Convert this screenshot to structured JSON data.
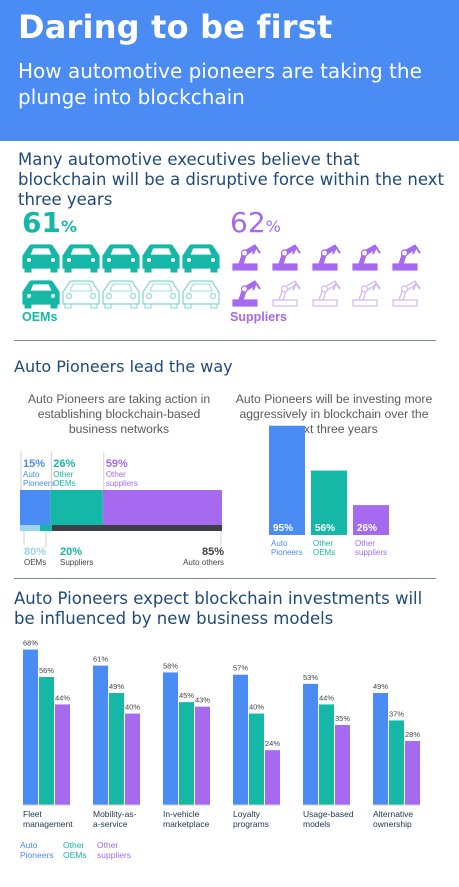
{
  "header": {
    "title": "Daring to be first",
    "subtitle": "How automotive pioneers are taking the plunge into blockchain"
  },
  "section1": {
    "heading": "Many automotive executives believe that blockchain will be a disruptive force within the next three years",
    "oems": {
      "value": "61",
      "unit": "%",
      "label": "OEMs",
      "icon": "car-icon",
      "filled": 6,
      "total": 10,
      "color": "#15b8a6"
    },
    "suppliers": {
      "value": "62",
      "unit": "%",
      "label": "Suppliers",
      "icon": "robot-arm-icon",
      "filled": 6,
      "total": 10,
      "color": "#a56af0"
    }
  },
  "section2": {
    "heading": "Auto Pioneers lead the way",
    "left_heading": "Auto Pioneers are taking action in establishing blockchain-based business networks",
    "right_heading": "Auto Pioneers will be investing more aggressively in blockchain over the next three years"
  },
  "section3": {
    "heading": "Auto Pioneers expect blockchain investments will be influenced by new business models"
  },
  "legend": {
    "auto_pioneers": "Auto Pioneers",
    "other_oems": "Other OEMs",
    "other_suppliers": "Other suppliers"
  },
  "colors": {
    "blue": "#4a8cf3",
    "teal": "#15b8a6",
    "purple": "#a56af0",
    "dark": "#3d4146",
    "header": "#4a8cf3"
  },
  "chart_data": [
    {
      "type": "bar",
      "orientation": "horizontal-stacked",
      "title": "Auto Pioneers are taking action in establishing blockchain-based business networks",
      "series": [
        {
          "name": "Auto Pioneers",
          "top_value": 15,
          "bottom_label": "OEMs",
          "bottom_value": 80
        },
        {
          "name": "Other OEMs",
          "top_value": 26,
          "bottom_label": "Suppliers",
          "bottom_value": 20
        },
        {
          "name": "Other suppliers",
          "top_value": 59,
          "bottom_label": "Auto others",
          "bottom_value": 85
        }
      ],
      "unit": "%"
    },
    {
      "type": "bar",
      "title": "Auto Pioneers will be investing more aggressively in blockchain over the next three years",
      "categories": [
        "Auto Pioneers",
        "Other OEMs",
        "Other suppliers"
      ],
      "values": [
        95,
        56,
        26
      ],
      "unit": "%",
      "ylim": [
        0,
        100
      ]
    },
    {
      "type": "bar",
      "title": "Auto Pioneers expect blockchain investments will be influenced by new business models",
      "categories": [
        "Fleet management",
        "Mobility-as-a-service",
        "In-vehicle marketplace",
        "Loyalty programs",
        "Usage-based models",
        "Alternative ownership"
      ],
      "series": [
        {
          "name": "Auto Pioneers",
          "values": [
            68,
            61,
            58,
            57,
            53,
            49
          ]
        },
        {
          "name": "Other OEMs",
          "values": [
            56,
            49,
            45,
            40,
            44,
            37
          ]
        },
        {
          "name": "Other suppliers",
          "values": [
            44,
            40,
            43,
            24,
            35,
            28
          ]
        }
      ],
      "unit": "%",
      "ylim": [
        0,
        70
      ]
    }
  ]
}
